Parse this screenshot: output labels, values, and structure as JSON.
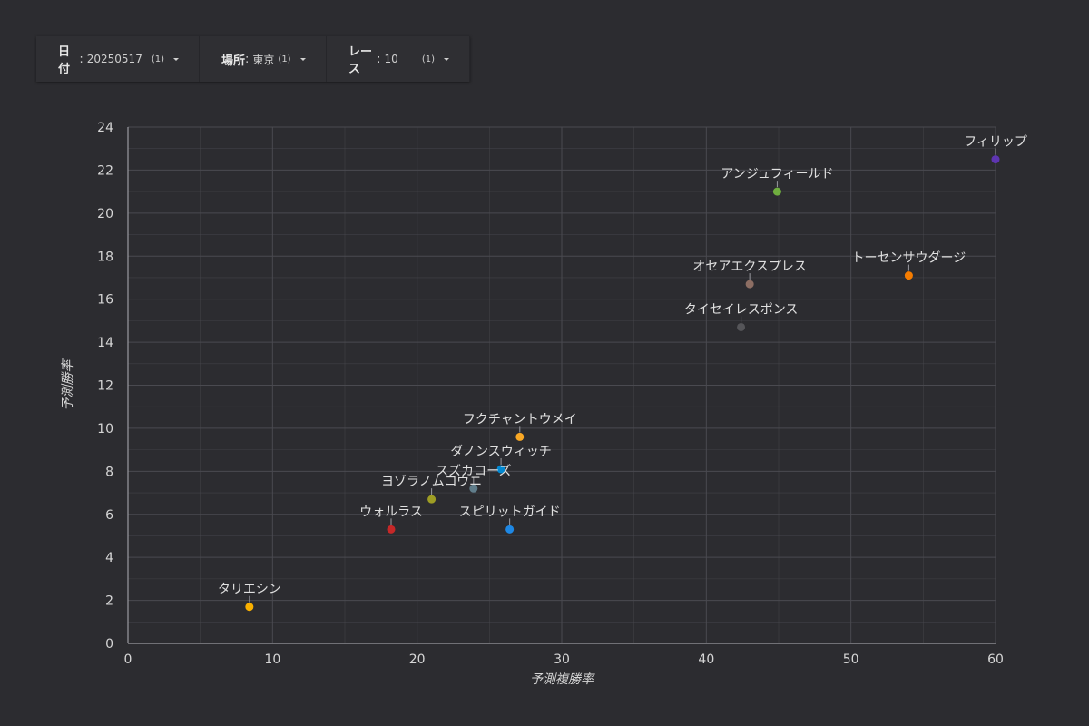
{
  "filters": [
    {
      "label": "日付",
      "value": "20250517",
      "count": "(1)"
    },
    {
      "label": "場所",
      "value": "東京",
      "count": "(1)"
    },
    {
      "label": "レース",
      "value": "10",
      "count": "(1)"
    }
  ],
  "colors": {
    "background": "#2c2c30",
    "grid": "#4a4a50",
    "axis": "#9a9aa0",
    "text": "#d6d6d6"
  },
  "chart_data": {
    "type": "scatter",
    "title": "",
    "xlabel": "予測複勝率",
    "ylabel": "予測勝率",
    "xlim": [
      0,
      60
    ],
    "ylim": [
      0,
      24
    ],
    "xticks": [
      0,
      10,
      20,
      30,
      40,
      50,
      60
    ],
    "yticks": [
      0,
      2,
      4,
      6,
      8,
      10,
      12,
      14,
      16,
      18,
      20,
      22,
      24
    ],
    "grid": true,
    "legend": "none",
    "points": [
      {
        "label": "フィリップ",
        "x": 60.0,
        "y": 22.5,
        "color": "#5e35b1"
      },
      {
        "label": "アンジュフィールド",
        "x": 44.9,
        "y": 21.0,
        "color": "#6fae3f"
      },
      {
        "label": "トーセンサウダージ",
        "x": 54.0,
        "y": 17.1,
        "color": "#f57c00"
      },
      {
        "label": "オセアエクスプレス",
        "x": 43.0,
        "y": 16.7,
        "color": "#8d6e63"
      },
      {
        "label": "タイセイレスポンス",
        "x": 42.4,
        "y": 14.7,
        "color": "#555559"
      },
      {
        "label": "フクチャントウメイ",
        "x": 27.1,
        "y": 9.6,
        "color": "#f9a825"
      },
      {
        "label": "ダノンスウィッチ",
        "x": 25.8,
        "y": 8.1,
        "color": "#0288d1"
      },
      {
        "label": "スズカコーズ",
        "x": 23.9,
        "y": 7.2,
        "color": "#607d8b"
      },
      {
        "label": "ヨゾラノムコウニ",
        "x": 21.0,
        "y": 6.7,
        "color": "#9e9d24"
      },
      {
        "label": "ウォルラス",
        "x": 18.2,
        "y": 5.3,
        "color": "#c62828"
      },
      {
        "label": "スピリットガイド",
        "x": 26.4,
        "y": 5.3,
        "color": "#1e88e5"
      },
      {
        "label": "タリエシン",
        "x": 8.4,
        "y": 1.7,
        "color": "#f9b000"
      }
    ]
  }
}
